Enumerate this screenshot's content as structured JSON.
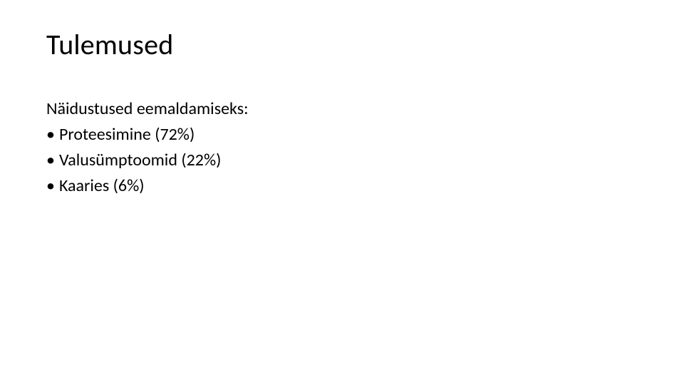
{
  "slide": {
    "title": "Tulemused",
    "intro_text": "Näidustused eemaldamiseks:",
    "bullets": [
      {
        "text": "Proteesimine (72%)"
      },
      {
        "text": "Valusümptoomid (22%)"
      },
      {
        "text": "Kaaries (6%)"
      }
    ],
    "bullet_char": "•",
    "styling": {
      "background_color": "#ffffff",
      "text_color": "#000000",
      "title_fontsize": 40,
      "body_fontsize": 24,
      "font_family": "Calibri"
    }
  }
}
